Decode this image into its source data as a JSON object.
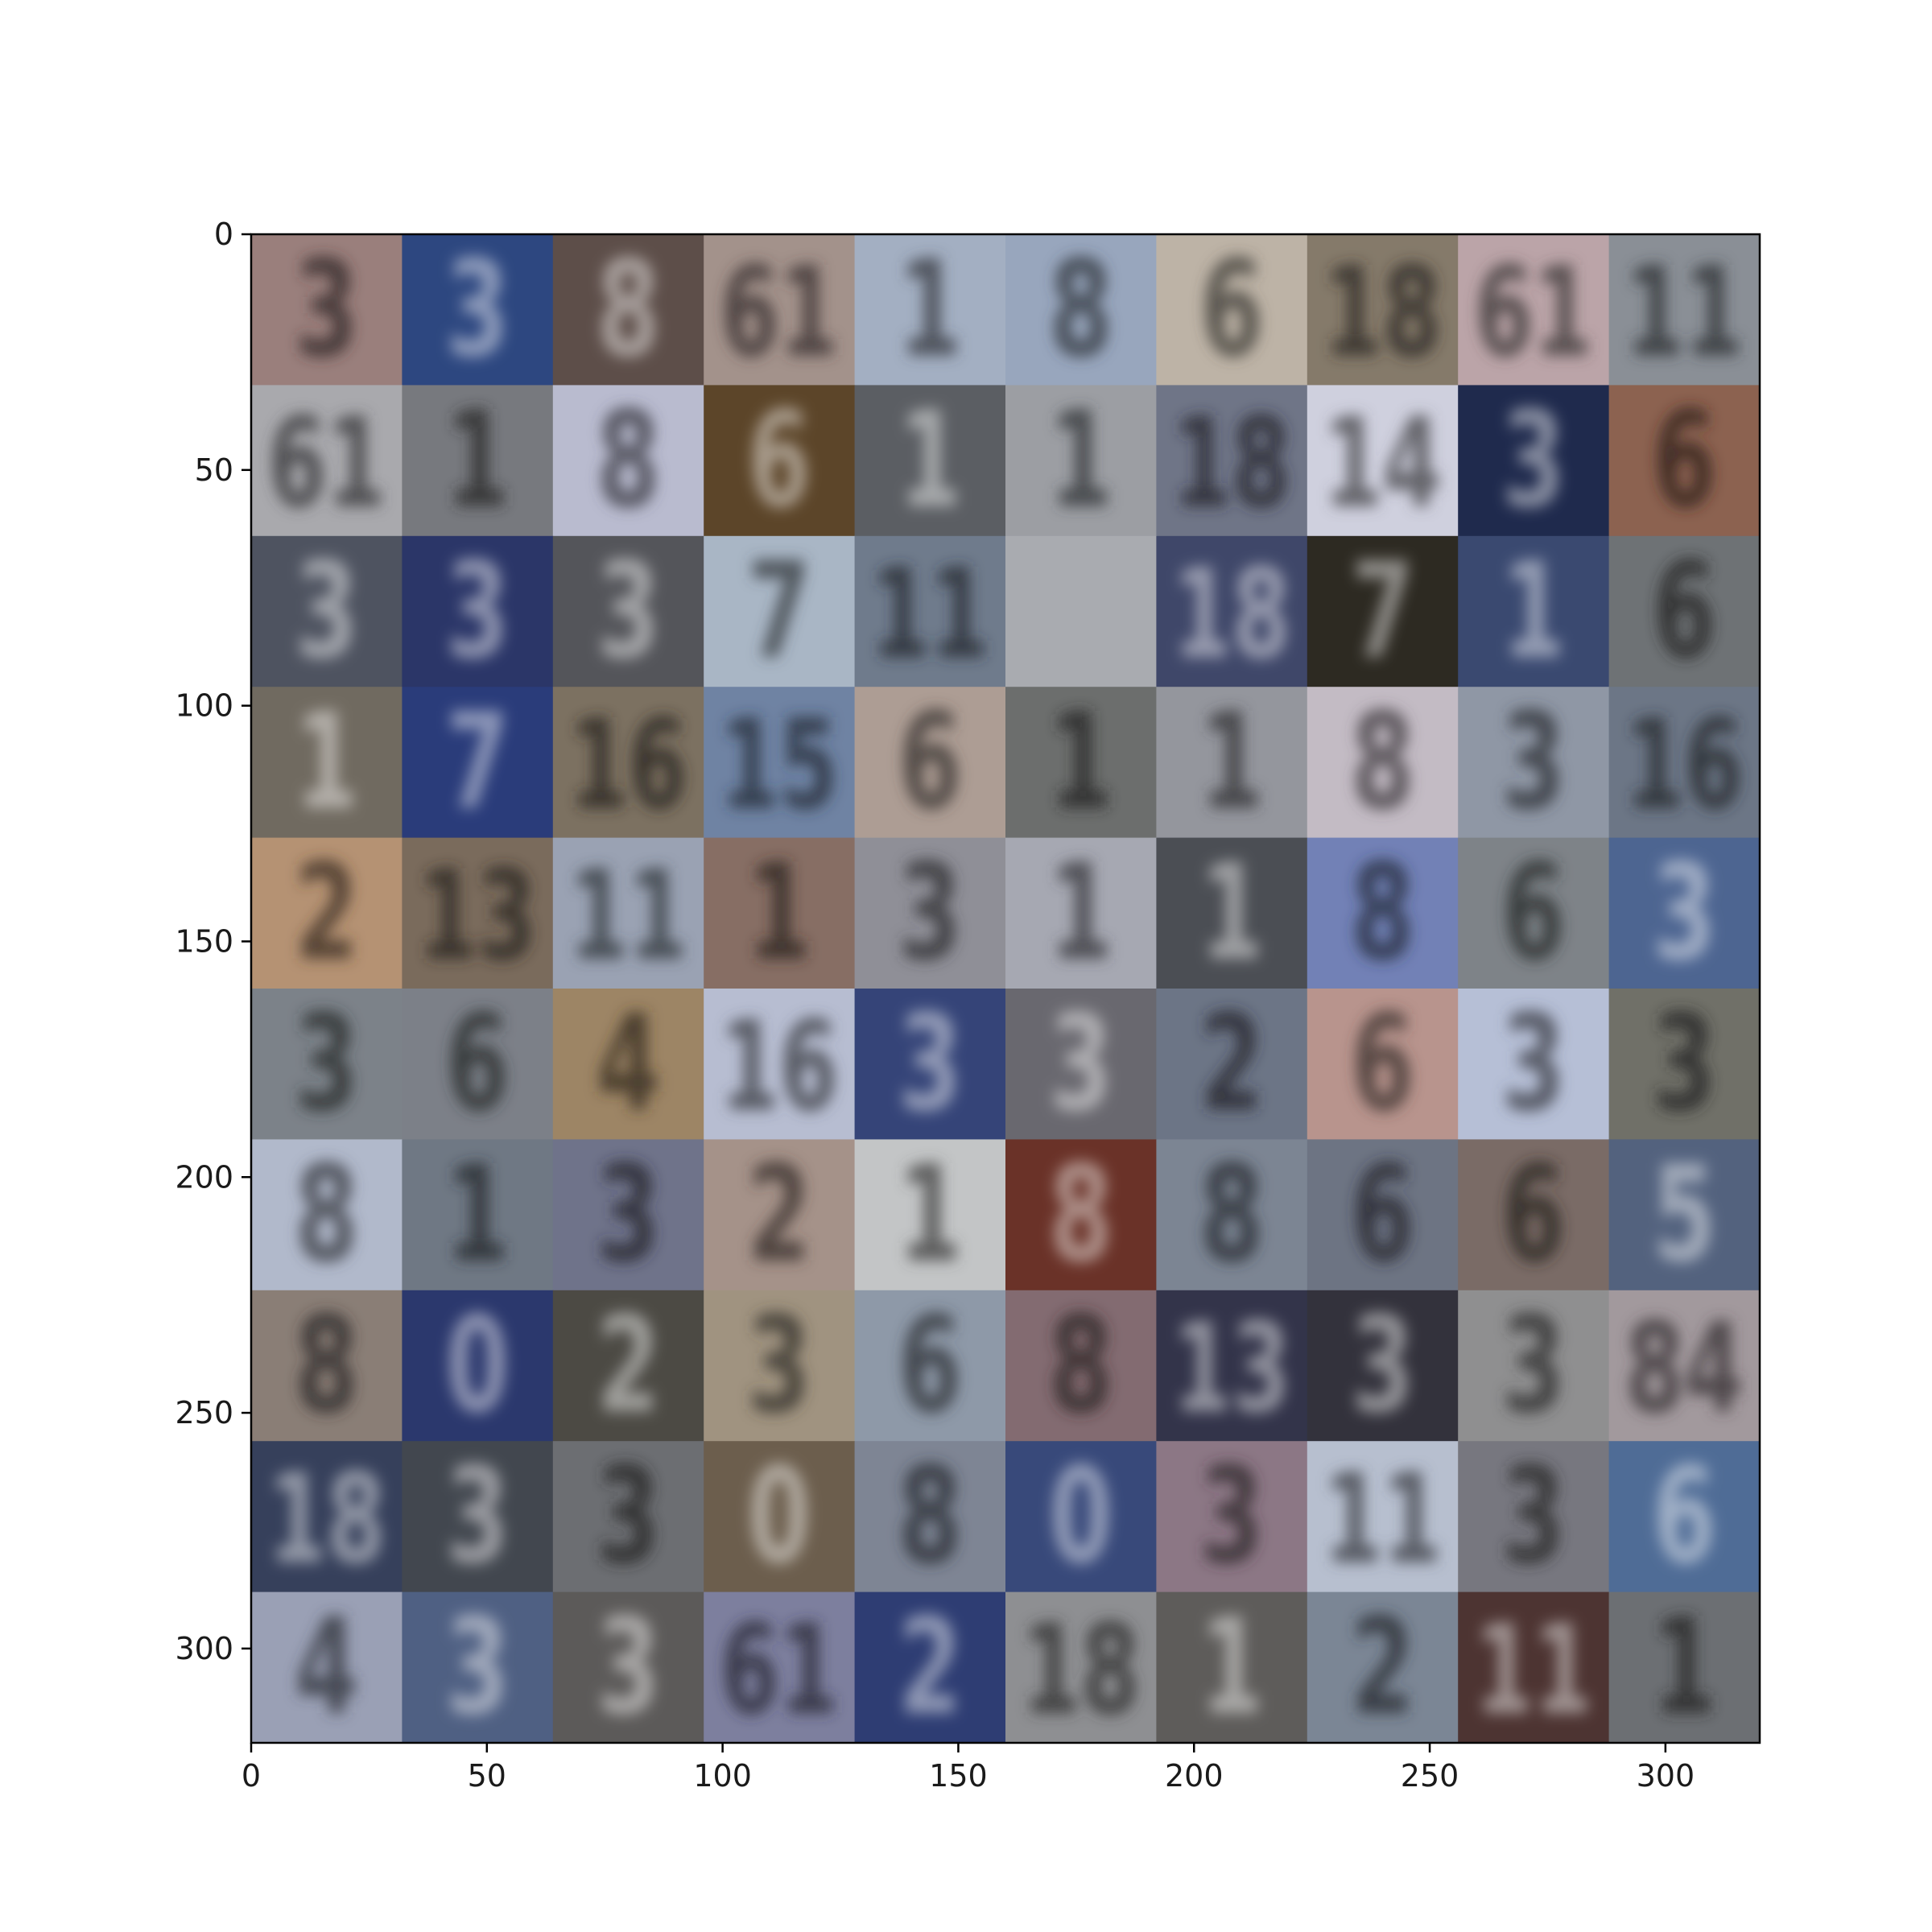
{
  "chart_data": {
    "type": "heatmap",
    "title": "",
    "xlabel": "",
    "ylabel": "",
    "xlim": [
      0,
      320
    ],
    "ylim": [
      320,
      0
    ],
    "xticks": [
      0,
      50,
      100,
      150,
      200,
      250,
      300
    ],
    "yticks": [
      0,
      50,
      100,
      150,
      200,
      250,
      300
    ],
    "xtick_labels": [
      "0",
      "50",
      "100",
      "150",
      "200",
      "250",
      "300"
    ],
    "ytick_labels": [
      "0",
      "50",
      "100",
      "150",
      "200",
      "250",
      "300"
    ],
    "grid": false,
    "grid_rows": 10,
    "grid_cols": 10,
    "tile_size": 32,
    "tiles": [
      [
        "#9a7f7c",
        "#2d4780",
        "#5d4e49",
        "#a3928b",
        "#a3afc2",
        "#98a6bd",
        "#bdb3a6",
        "#857a6a",
        "#bba4a8",
        "#8a8f96"
      ],
      [
        "#a9a9ad",
        "#77797e",
        "#b9bbcf",
        "#5c4529",
        "#5b5e63",
        "#9c9ea3",
        "#6f7587",
        "#cfd0de",
        "#1f2a4d",
        "#8c6250"
      ],
      [
        "#4e5360",
        "#2b3668",
        "#54555a",
        "#a9b6c5",
        "#6f7b8c",
        "#a9abb0",
        "#3f4769",
        "#2d2a22",
        "#3a4970",
        "#6e7275"
      ],
      [
        "#706a60",
        "#2a3c7a",
        "#7c7161",
        "#6f83a3",
        "#ad9d94",
        "#6c6e6d",
        "#94969d",
        "#c3bbc4",
        "#8f97a5",
        "#6c7686"
      ],
      [
        "#b59273",
        "#7a6b5c",
        "#9aa2b3",
        "#876e64",
        "#8f8f97",
        "#a6a8b2",
        "#4b4e54",
        "#7281b6",
        "#7e8388",
        "#4d6591"
      ],
      [
        "#7c8289",
        "#7c8088",
        "#9d8565",
        "#b7bdd1",
        "#354478",
        "#69686f",
        "#6c7586",
        "#b8948d",
        "#b6bfd6",
        "#707068"
      ],
      [
        "#b1b9cb",
        "#6f7884",
        "#6f738a",
        "#a59289",
        "#c3c5c6",
        "#6a3228",
        "#7c8593",
        "#6d7483",
        "#7a6b66",
        "#53627e"
      ],
      [
        "#8a7e76",
        "#2b386d",
        "#4c4a44",
        "#a09380",
        "#8e99a8",
        "#836b71",
        "#33344a",
        "#33323c",
        "#8f8f90",
        "#a2999d"
      ],
      [
        "#36405b",
        "#42474f",
        "#6c6e72",
        "#6c5e4d",
        "#7e8594",
        "#38497a",
        "#8c7785",
        "#b7bfcf",
        "#77777f",
        "#4f6c96"
      ],
      [
        "#9aa0b5",
        "#4f6083",
        "#5c5a59",
        "#7d7f9e",
        "#2e3d73",
        "#8e8f92",
        "#5e5c5a",
        "#7b8695",
        "#4d3432",
        "#6c6f73"
      ]
    ],
    "digits": [
      [
        "3",
        "3",
        "8",
        "61",
        "1",
        "8",
        "6",
        "18",
        "61",
        "11"
      ],
      [
        "61",
        "1",
        "8",
        "6",
        "1",
        "1",
        "18",
        "14",
        "3",
        "6"
      ],
      [
        "3",
        "3",
        "3",
        "7",
        "11",
        "",
        "18",
        "7",
        "1",
        "6"
      ],
      [
        "1",
        "7",
        "16",
        "15",
        "6",
        "1",
        "1",
        "8",
        "3",
        "16"
      ],
      [
        "2",
        "13",
        "11",
        "1",
        "3",
        "1",
        "1",
        "8",
        "6",
        "3"
      ],
      [
        "3",
        "6",
        "4",
        "16",
        "3",
        "3",
        "2",
        "6",
        "3",
        "3"
      ],
      [
        "8",
        "1",
        "3",
        "2",
        "1",
        "8",
        "8",
        "6",
        "6",
        "5"
      ],
      [
        "8",
        "0",
        "2",
        "3",
        "6",
        "8",
        "13",
        "3",
        "3",
        "84"
      ],
      [
        "18",
        "3",
        "3",
        "0",
        "8",
        "0",
        "3",
        "11",
        "3",
        "6"
      ],
      [
        "4",
        "3",
        "3",
        "61",
        "2",
        "18",
        "1",
        "2",
        "11",
        "1"
      ]
    ]
  }
}
